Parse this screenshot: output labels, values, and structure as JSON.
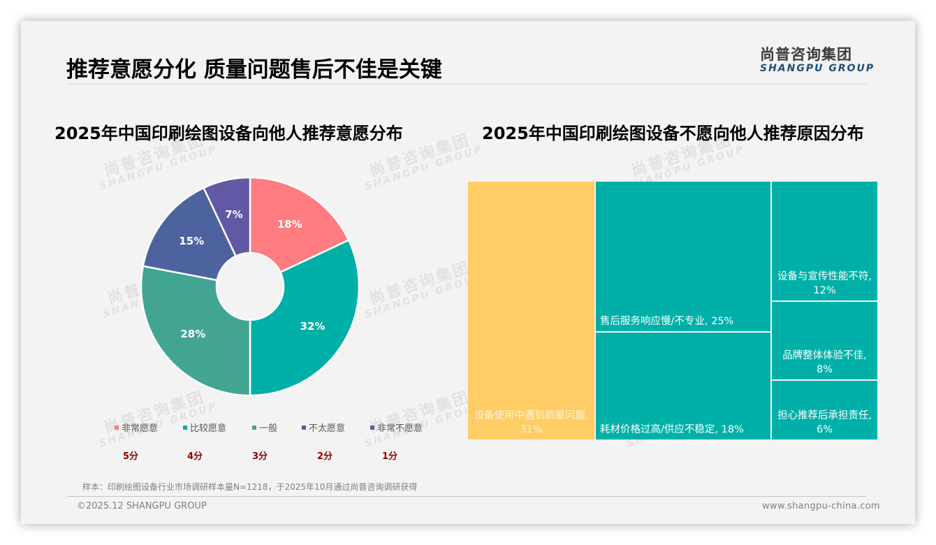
{
  "header": {
    "title": "推荐意愿分化 质量问题售后不佳是关键",
    "logo_cn": "尚普咨询集团",
    "logo_en": "SHANGPU GROUP"
  },
  "watermark": {
    "cn": "尚普咨询集团",
    "en": "SHANGPU GROUP"
  },
  "left_chart": {
    "title": "2025年中国印刷绘图设备向他人推荐意愿分布",
    "legend": [
      {
        "label": "非常愿意",
        "color": "#FF7C80",
        "score": "5分"
      },
      {
        "label": "比较愿意",
        "color": "#00B0A8",
        "score": "4分"
      },
      {
        "label": "一般",
        "color": "#42A592",
        "score": "3分"
      },
      {
        "label": "不太愿意",
        "color": "#4D63A0",
        "score": "2分"
      },
      {
        "label": "非常不愿意",
        "color": "#6159A6",
        "score": "1分"
      }
    ]
  },
  "right_chart": {
    "title": "2025年中国印刷绘图设备不愿向他人推荐原因分布",
    "cells": [
      {
        "label": "设备使用中遇到质量问题, 31%",
        "color": "#FFCC66"
      },
      {
        "label": "售后服务响应慢/不专业, 25%",
        "color": "#00B0A8"
      },
      {
        "label": "耗材价格过高/供应不稳定, 18%",
        "color": "#00B0A8"
      },
      {
        "label": "设备与宣传性能不符, 12%",
        "color": "#00B0A8"
      },
      {
        "label": "品牌整体体验不佳, 8%",
        "color": "#00B0A8"
      },
      {
        "label": "担心推荐后承担责任, 6%",
        "color": "#00B0A8"
      }
    ]
  },
  "chart_data": [
    {
      "type": "pie",
      "donut": true,
      "title": "2025年中国印刷绘图设备向他人推荐意愿分布",
      "categories": [
        "非常愿意",
        "比较愿意",
        "一般",
        "不太愿意",
        "非常不愿意"
      ],
      "values": [
        18,
        32,
        28,
        15,
        7
      ],
      "labels": [
        "18%",
        "32%",
        "28%",
        "15%",
        "7%"
      ],
      "scores": [
        "5分",
        "4分",
        "3分",
        "2分",
        "1分"
      ],
      "colors": [
        "#FF7C80",
        "#00B0A8",
        "#42A592",
        "#4D63A0",
        "#6159A6"
      ],
      "legend_position": "bottom"
    },
    {
      "type": "treemap",
      "title": "2025年中国印刷绘图设备不愿向他人推荐原因分布",
      "categories": [
        "设备使用中遇到质量问题",
        "售后服务响应慢/不专业",
        "耗材价格过高/供应不稳定",
        "设备与宣传性能不符",
        "品牌整体体验不佳",
        "担心推荐后承担责任"
      ],
      "values": [
        31,
        25,
        18,
        12,
        8,
        6
      ],
      "unit": "%"
    }
  ],
  "footer": {
    "note": "样本：印刷绘图设备行业市场调研样本量N=1218，于2025年10月通过尚普咨询调研获得",
    "copyright": "©2025.12 SHANGPU GROUP",
    "website": "www.shangpu-china.com"
  }
}
